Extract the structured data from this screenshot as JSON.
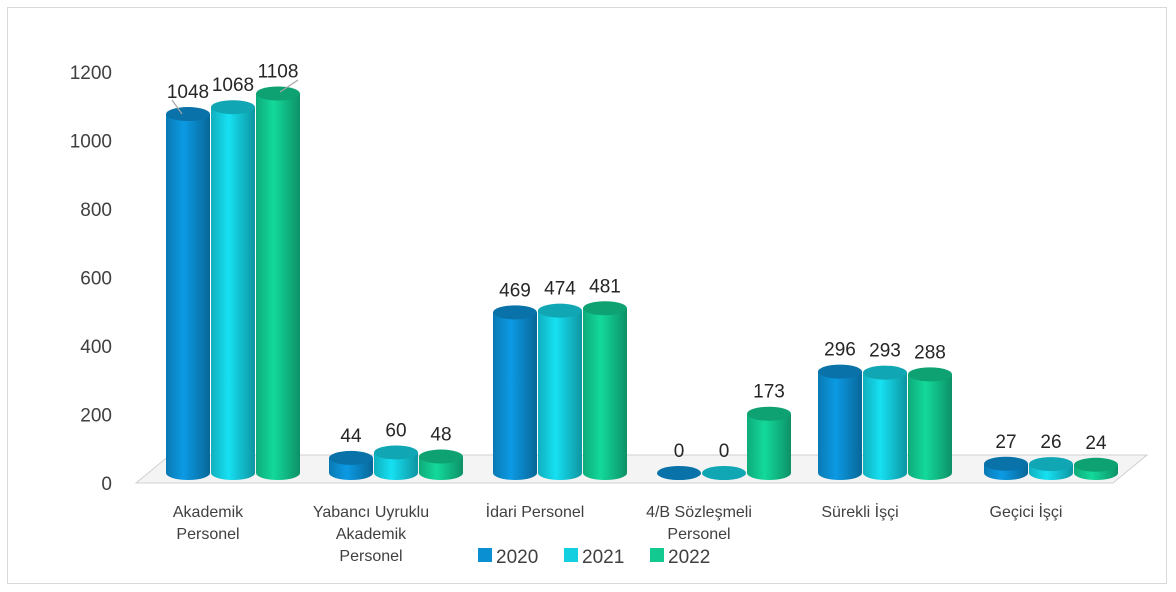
{
  "chart_data": {
    "type": "bar",
    "title": "",
    "xlabel": "",
    "ylabel": "",
    "ylim": [
      0,
      1200
    ],
    "yticks": [
      0,
      200,
      400,
      600,
      800,
      1000,
      1200
    ],
    "grid": false,
    "legend_position": "bottom",
    "categories": [
      [
        "Akademik",
        "Personel"
      ],
      [
        "Yabancı Uyruklu",
        "Akademik",
        "Personel"
      ],
      [
        "İdari Personel"
      ],
      [
        "4/B Sözleşmeli",
        "Personel"
      ],
      [
        "Sürekli İşçi"
      ],
      [
        "Geçici İşçi"
      ]
    ],
    "series": [
      {
        "name": "2020",
        "color": "#0b8fd3",
        "values": [
          1048,
          44,
          469,
          0,
          296,
          27
        ]
      },
      {
        "name": "2021",
        "color": "#14cfe0",
        "values": [
          1068,
          60,
          474,
          0,
          293,
          26
        ]
      },
      {
        "name": "2022",
        "color": "#12c98f",
        "values": [
          1108,
          48,
          481,
          173,
          288,
          24
        ]
      }
    ]
  }
}
